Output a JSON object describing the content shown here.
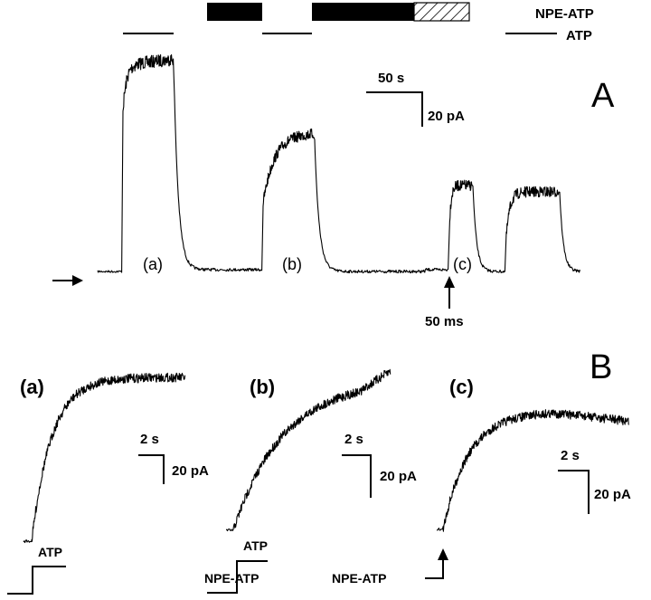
{
  "panel_a": {
    "letter": "A",
    "legend_npe": "NPE-ATP",
    "legend_atp": "ATP",
    "scale_time": "50 s",
    "scale_current": "20 pA",
    "segment_labels": [
      "(a)",
      "(b)",
      "(c)"
    ],
    "arrow_label": "50 ms"
  },
  "panel_b": {
    "letter": "B",
    "sub": [
      {
        "label": "(a)",
        "scale_time": "2 s",
        "scale_current": "20 pA",
        "stimulus": "ATP"
      },
      {
        "label": "(b)",
        "scale_time": "2 s",
        "scale_current": "20 pA",
        "stimulus_top": "ATP",
        "stimulus_left": "NPE-ATP"
      },
      {
        "label": "(c)",
        "scale_time": "2 s",
        "scale_current": "20 pA",
        "stimulus": "NPE-ATP"
      }
    ]
  },
  "colors": {
    "ink": "#000000",
    "background": "#ffffff"
  }
}
